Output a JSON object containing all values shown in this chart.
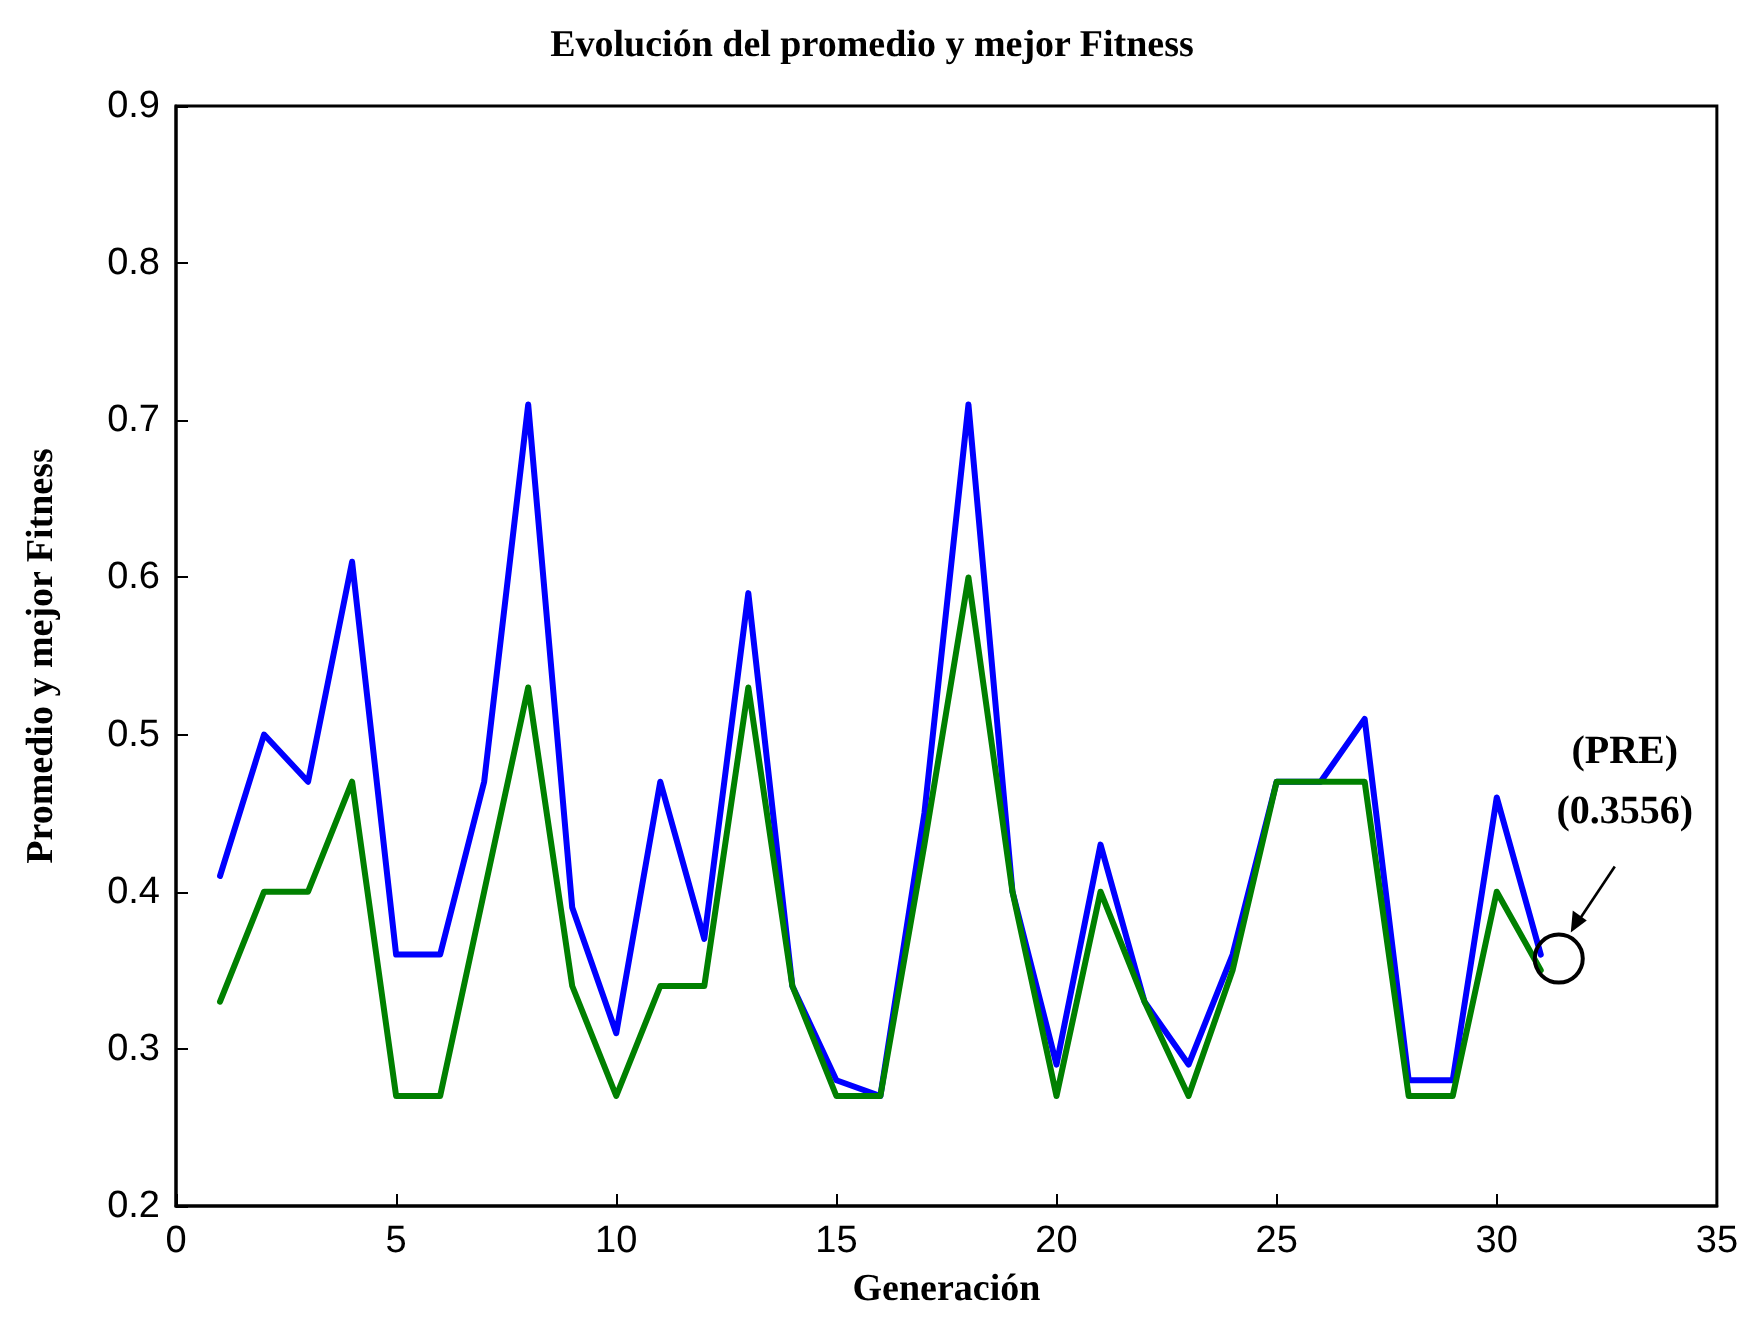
{
  "chart_data": {
    "type": "line",
    "title": "Evolución del promedio y mejor Fitness",
    "xlabel": "Generación",
    "ylabel": "Promedio y mejor Fitness",
    "x": [
      1,
      2,
      3,
      4,
      5,
      6,
      7,
      8,
      9,
      10,
      11,
      12,
      13,
      14,
      15,
      16,
      17,
      18,
      19,
      20,
      21,
      22,
      23,
      24,
      25,
      26,
      27,
      28,
      29,
      30,
      31
    ],
    "series": [
      {
        "color": "#0000ff",
        "values": [
          0.41,
          0.5,
          0.47,
          0.61,
          0.36,
          0.36,
          0.47,
          0.71,
          0.39,
          0.31,
          0.47,
          0.37,
          0.59,
          0.34,
          0.28,
          0.27,
          0.45,
          0.71,
          0.4,
          0.29,
          0.43,
          0.33,
          0.29,
          0.36,
          0.47,
          0.47,
          0.51,
          0.28,
          0.28,
          0.46,
          0.36
        ]
      },
      {
        "color": "#008000",
        "values": [
          0.33,
          0.4,
          0.4,
          0.47,
          0.27,
          0.27,
          0.4,
          0.53,
          0.34,
          0.27,
          0.34,
          0.34,
          0.53,
          0.34,
          0.27,
          0.27,
          0.43,
          0.6,
          0.4,
          0.27,
          0.4,
          0.33,
          0.27,
          0.35,
          0.47,
          0.47,
          0.47,
          0.27,
          0.27,
          0.4,
          0.35
        ]
      }
    ],
    "xlim": [
      0,
      35
    ],
    "xticks": [
      0,
      5,
      10,
      15,
      20,
      25,
      30,
      35
    ],
    "ylim": [
      0.2,
      0.9
    ],
    "yticks": [
      0.2,
      0.3,
      0.4,
      0.5,
      0.6,
      0.7,
      0.8,
      0.9
    ],
    "grid": false,
    "marker": "none",
    "line_style": "solid",
    "annotations": [
      "(PRE)\n(0.3556)"
    ]
  }
}
